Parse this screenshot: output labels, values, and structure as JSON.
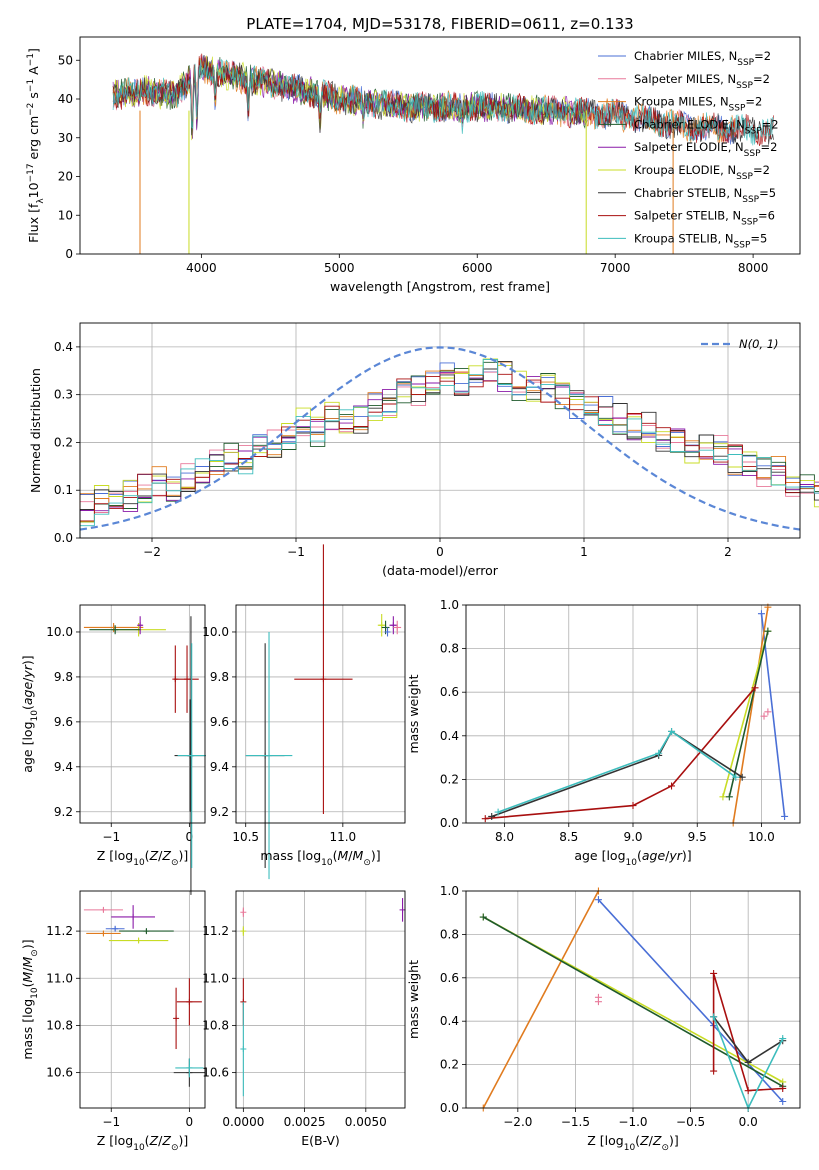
{
  "chart_data": [
    {
      "type": "line",
      "title": "PLATE=1704, MJD=53178, FIBERID=0611, z=0.133",
      "xlabel": "wavelength [Angstrom, rest frame]",
      "ylabel": "Flux [f_λ10^-17 erg cm^-2 s^-1 A^-1]",
      "xlim": [
        3120,
        8340
      ],
      "ylim": [
        0,
        56
      ],
      "xticks": [
        4000,
        5000,
        6000,
        7000,
        8000
      ],
      "yticks": [
        0,
        10,
        20,
        30,
        40,
        50
      ],
      "grid": false,
      "legend_position": "top-right",
      "series": [
        {
          "name": "Chabrier MILES, N_SSP=2",
          "color": "#4a6fd6",
          "range": [
            3360,
            7880
          ]
        },
        {
          "name": "Salpeter MILES, N_SSP=2",
          "color": "#e8799a",
          "range": [
            3360,
            7880
          ]
        },
        {
          "name": "Kroupa MILES, N_SSP=2",
          "color": "#e07b1f",
          "range": [
            3360,
            7880
          ]
        },
        {
          "name": "Chabrier ELODIE, N_SSP=2",
          "color": "#1f5a2c",
          "range": [
            3360,
            6800
          ]
        },
        {
          "name": "Salpeter ELODIE, N_SSP=2",
          "color": "#8a1aa8",
          "range": [
            3360,
            6800
          ]
        },
        {
          "name": "Kroupa ELODIE, N_SSP=2",
          "color": "#c8dc25",
          "range": [
            3360,
            6800
          ]
        },
        {
          "name": "Chabrier STELIB, N_SSP=5",
          "color": "#333333",
          "range": [
            3360,
            8150
          ]
        },
        {
          "name": "Salpeter STELIB, N_SSP=6",
          "color": "#a80f0f",
          "range": [
            3360,
            8150
          ]
        },
        {
          "name": "Kroupa STELIB, N_SSP=5",
          "color": "#3dbdbd",
          "range": [
            3360,
            8150
          ]
        }
      ],
      "continuum": {
        "x": [
          3350,
          3600,
          3800,
          4000,
          4200,
          4500,
          5000,
          5500,
          6000,
          6500,
          7000,
          7500,
          8000,
          8150
        ],
        "y": [
          41,
          42,
          41,
          48,
          46,
          44,
          40,
          38,
          38,
          37,
          36,
          33,
          32,
          32
        ]
      }
    },
    {
      "type": "bar",
      "xlabel": "(data-model)/error",
      "ylabel": "Normed distribution",
      "xlim": [
        -2.5,
        2.5
      ],
      "ylim": [
        0,
        0.45
      ],
      "xticks": [
        -2,
        -1,
        0,
        1,
        2
      ],
      "yticks": [
        0.0,
        0.1,
        0.2,
        0.3,
        0.4
      ],
      "grid": true,
      "legend_position": "top-right",
      "legend_label": "N(0, 1)",
      "gaussian": {
        "mu": 0,
        "sigma": 1,
        "color": "#5b87d6"
      },
      "bins": {
        "start": -2.5,
        "width": 0.1
      },
      "colors": [
        "#4a6fd6",
        "#e8799a",
        "#e07b1f",
        "#1f5a2c",
        "#8a1aa8",
        "#c8dc25",
        "#333333",
        "#a80f0f",
        "#3dbdbd"
      ],
      "base_hist": [
        0.06,
        0.08,
        0.08,
        0.09,
        0.1,
        0.12,
        0.11,
        0.13,
        0.14,
        0.15,
        0.17,
        0.16,
        0.2,
        0.2,
        0.21,
        0.24,
        0.22,
        0.26,
        0.25,
        0.25,
        0.28,
        0.28,
        0.31,
        0.31,
        0.32,
        0.34,
        0.33,
        0.35,
        0.35,
        0.34,
        0.32,
        0.31,
        0.31,
        0.3,
        0.28,
        0.27,
        0.27,
        0.25,
        0.24,
        0.23,
        0.21,
        0.2,
        0.19,
        0.2,
        0.18,
        0.16,
        0.15,
        0.14,
        0.14,
        0.12,
        0.12,
        0.1,
        0.1,
        0.09,
        0.08,
        0.08,
        0.07,
        0.06,
        0.07,
        0.05
      ]
    },
    {
      "type": "scatter",
      "xlabel": "Z [log10(Z/Z_sun)]",
      "ylabel": "age [log10(age/yr)]",
      "xlim": [
        -1.4,
        0.2
      ],
      "ylim": [
        9.15,
        10.12
      ],
      "xticks": [
        -1,
        0
      ],
      "yticks": [
        9.2,
        9.4,
        9.6,
        9.8,
        10.0
      ],
      "grid": true,
      "points": [
        {
          "x": -0.97,
          "y": 10.02,
          "xerr": 0.38,
          "yerr": 0.02,
          "color": "#e07b1f"
        },
        {
          "x": -0.65,
          "y": 10.01,
          "xerr": 0.35,
          "yerr": 0.03,
          "color": "#c8dc25"
        },
        {
          "x": -0.95,
          "y": 10.01,
          "xerr": 0.33,
          "yerr": 0.02,
          "color": "#1f5a2c"
        },
        {
          "x": -0.63,
          "y": 10.03,
          "xerr": 0.03,
          "yerr": 0.04,
          "color": "#8a1aa8"
        },
        {
          "x": -0.03,
          "y": 9.79,
          "xerr": 0.15,
          "yerr": 0.15,
          "color": "#a80f0f"
        },
        {
          "x": -0.18,
          "y": 9.79,
          "xerr": 0.02,
          "yerr": 0.15,
          "color": "#a80f0f"
        },
        {
          "x": 0.01,
          "y": 9.45,
          "xerr": 0.2,
          "yerr": 0.25,
          "color": "#333333"
        },
        {
          "x": 0.02,
          "y": 9.45,
          "xerr": 0.02,
          "yerr": 0.62,
          "color": "#333333"
        },
        {
          "x": 0.03,
          "y": 9.45,
          "xerr": 0.18,
          "yerr": 0.5,
          "color": "#3dbdbd"
        }
      ]
    },
    {
      "type": "scatter",
      "xlabel": "mass [log10(M/M_sun)]",
      "ylabel": "",
      "xlim": [
        10.45,
        11.32
      ],
      "ylim": [
        9.15,
        10.12
      ],
      "xticks": [
        10.5,
        11.0
      ],
      "yticks": [
        9.2,
        9.4,
        9.6,
        9.8,
        10.0
      ],
      "grid": true,
      "points": [
        {
          "x": 11.2,
          "y": 10.03,
          "xerr": 0.02,
          "yerr": 0.05,
          "color": "#c8dc25"
        },
        {
          "x": 11.22,
          "y": 10.02,
          "xerr": 0.02,
          "yerr": 0.03,
          "color": "#1f5a2c"
        },
        {
          "x": 11.26,
          "y": 10.03,
          "xerr": 0.02,
          "yerr": 0.04,
          "color": "#8a1aa8"
        },
        {
          "x": 11.28,
          "y": 10.02,
          "xerr": 0.02,
          "yerr": 0.03,
          "color": "#e8799a"
        },
        {
          "x": 11.23,
          "y": 10.0,
          "xerr": 0.01,
          "yerr": 0.02,
          "color": "#4a6fd6"
        },
        {
          "x": 10.9,
          "y": 9.79,
          "xerr": 0.15,
          "yerr": 0.6,
          "color": "#a80f0f"
        },
        {
          "x": 10.6,
          "y": 9.45,
          "xerr": 0.1,
          "yerr": 0.5,
          "color": "#333333"
        },
        {
          "x": 10.62,
          "y": 9.45,
          "xerr": 0.12,
          "yerr": 0.55,
          "color": "#3dbdbd"
        }
      ]
    },
    {
      "type": "line",
      "xlabel": "age [log10(age/yr)]",
      "ylabel": "mass weight",
      "xlim": [
        7.7,
        10.3
      ],
      "ylim": [
        0,
        1
      ],
      "xticks": [
        8.0,
        8.5,
        9.0,
        9.5,
        10.0
      ],
      "yticks": [
        0.0,
        0.2,
        0.4,
        0.6,
        0.8,
        1.0
      ],
      "grid": true,
      "series": [
        {
          "color": "#4a6fd6",
          "x": [
            10.0,
            10.18
          ],
          "y": [
            0.96,
            0.03
          ]
        },
        {
          "color": "#e07b1f",
          "x": [
            9.78,
            10.05
          ],
          "y": [
            0.0,
            0.99
          ]
        },
        {
          "color": "#c8dc25",
          "x": [
            9.7,
            10.05
          ],
          "y": [
            0.12,
            0.88
          ]
        },
        {
          "color": "#1f5a2c",
          "x": [
            9.75,
            10.05
          ],
          "y": [
            0.12,
            0.88
          ]
        },
        {
          "color": "#a80f0f",
          "x": [
            7.85,
            9.0,
            9.3,
            9.95
          ],
          "y": [
            0.02,
            0.08,
            0.17,
            0.62
          ]
        },
        {
          "color": "#333333",
          "x": [
            7.9,
            9.2,
            9.3,
            9.85
          ],
          "y": [
            0.03,
            0.31,
            0.42,
            0.21
          ]
        },
        {
          "color": "#3dbdbd",
          "x": [
            7.95,
            9.2,
            9.3,
            9.8
          ],
          "y": [
            0.05,
            0.32,
            0.42,
            0.21
          ]
        }
      ],
      "points": [
        {
          "x": 10.02,
          "y": 0.49,
          "color": "#e8799a"
        },
        {
          "x": 10.05,
          "y": 0.51,
          "color": "#e8799a"
        }
      ]
    },
    {
      "type": "scatter",
      "xlabel": "Z [log10(Z/Z_sun)]",
      "ylabel": "mass [log10(M/M_sun)]",
      "xlim": [
        -1.4,
        0.2
      ],
      "ylim": [
        10.45,
        11.37
      ],
      "xticks": [
        -1,
        0
      ],
      "yticks": [
        10.6,
        10.8,
        11.0,
        11.2
      ],
      "grid": true,
      "points": [
        {
          "x": -1.1,
          "y": 11.29,
          "xerr": 0.25,
          "yerr": 0.01,
          "color": "#e8799a"
        },
        {
          "x": -0.72,
          "y": 11.26,
          "xerr": 0.28,
          "yerr": 0.05,
          "color": "#8a1aa8"
        },
        {
          "x": -1.1,
          "y": 11.19,
          "xerr": 0.22,
          "yerr": 0.01,
          "color": "#e07b1f"
        },
        {
          "x": -0.95,
          "y": 11.21,
          "xerr": 0.12,
          "yerr": 0.01,
          "color": "#4a6fd6"
        },
        {
          "x": -0.65,
          "y": 11.16,
          "xerr": 0.38,
          "yerr": 0.01,
          "color": "#c8dc25"
        },
        {
          "x": -0.55,
          "y": 11.2,
          "xerr": 0.35,
          "yerr": 0.01,
          "color": "#1f5a2c"
        },
        {
          "x": 0.0,
          "y": 10.9,
          "xerr": 0.16,
          "yerr": 0.1,
          "color": "#a80f0f"
        },
        {
          "x": -0.17,
          "y": 10.83,
          "xerr": 0.01,
          "yerr": 0.13,
          "color": "#a80f0f"
        },
        {
          "x": 0.0,
          "y": 10.6,
          "xerr": 0.2,
          "yerr": 0.06,
          "color": "#333333"
        },
        {
          "x": 0.0,
          "y": 10.62,
          "xerr": 0.18,
          "yerr": 0.04,
          "color": "#3dbdbd"
        }
      ]
    },
    {
      "type": "scatter",
      "xlabel": "E(B-V)",
      "ylabel": "",
      "xlim": [
        -0.0003,
        0.0066
      ],
      "ylim": [
        10.45,
        11.37
      ],
      "xticks": [
        0.0,
        0.0025,
        0.005
      ],
      "xticklabels": [
        "0.0000",
        "0.0025",
        "0.0050"
      ],
      "yticks": [
        10.6,
        10.8,
        11.0,
        11.2
      ],
      "grid": true,
      "points": [
        {
          "x": 0.0065,
          "y": 11.29,
          "yerr": 0.05,
          "color": "#8a1aa8"
        },
        {
          "x": 0.0,
          "y": 11.28,
          "yerr": 0.02,
          "color": "#e8799a"
        },
        {
          "x": 0.0,
          "y": 11.2,
          "yerr": 0.02,
          "color": "#c8dc25"
        },
        {
          "x": 0.0,
          "y": 10.9,
          "yerr": 0.1,
          "color": "#a80f0f"
        },
        {
          "x": 0.0,
          "y": 10.7,
          "yerr": 0.2,
          "color": "#3dbdbd"
        }
      ]
    },
    {
      "type": "line",
      "xlabel": "Z [log10(Z/Z_sun)]",
      "ylabel": "mass weight",
      "xlim": [
        -2.45,
        0.45
      ],
      "ylim": [
        0,
        1
      ],
      "xticks": [
        -2.0,
        -1.5,
        -1.0,
        -0.5,
        0.0
      ],
      "yticks": [
        0.0,
        0.2,
        0.4,
        0.6,
        0.8,
        1.0
      ],
      "grid": true,
      "series": [
        {
          "color": "#e07b1f",
          "x": [
            -2.3,
            -1.3
          ],
          "y": [
            0.0,
            1.0
          ]
        },
        {
          "color": "#4a6fd6",
          "x": [
            -1.3,
            -0.3,
            0.3
          ],
          "y": [
            0.96,
            0.38,
            0.03
          ]
        },
        {
          "color": "#c8dc25",
          "x": [
            -2.3,
            0.3
          ],
          "y": [
            0.88,
            0.12
          ]
        },
        {
          "color": "#1f5a2c",
          "x": [
            -2.3,
            0.3
          ],
          "y": [
            0.88,
            0.1
          ]
        },
        {
          "color": "#a80f0f",
          "x": [
            -0.3,
            -0.3,
            0.0,
            0.3
          ],
          "y": [
            0.17,
            0.62,
            0.08,
            0.09
          ]
        },
        {
          "color": "#333333",
          "x": [
            -0.3,
            0.0,
            0.3
          ],
          "y": [
            0.42,
            0.21,
            0.31
          ]
        },
        {
          "color": "#3dbdbd",
          "x": [
            -0.3,
            0.0,
            0.3
          ],
          "y": [
            0.42,
            0.0,
            0.32
          ]
        }
      ],
      "points": [
        {
          "x": -1.3,
          "y": 0.49,
          "color": "#e8799a"
        },
        {
          "x": -1.3,
          "y": 0.51,
          "color": "#e8799a"
        }
      ]
    }
  ],
  "legend_labels": [
    "Chabrier MILES, N_{SSP}=2",
    "Salpeter MILES, N_{SSP}=2",
    "Kroupa MILES, N_{SSP}=2",
    "Chabrier ELODIE, N_{SSP}=2",
    "Salpeter ELODIE, N_{SSP}=2",
    "Kroupa ELODIE, N_{SSP}=2",
    "Chabrier STELIB, N_{SSP}=5",
    "Salpeter STELIB, N_{SSP}=6",
    "Kroupa STELIB, N_{SSP}=5"
  ]
}
